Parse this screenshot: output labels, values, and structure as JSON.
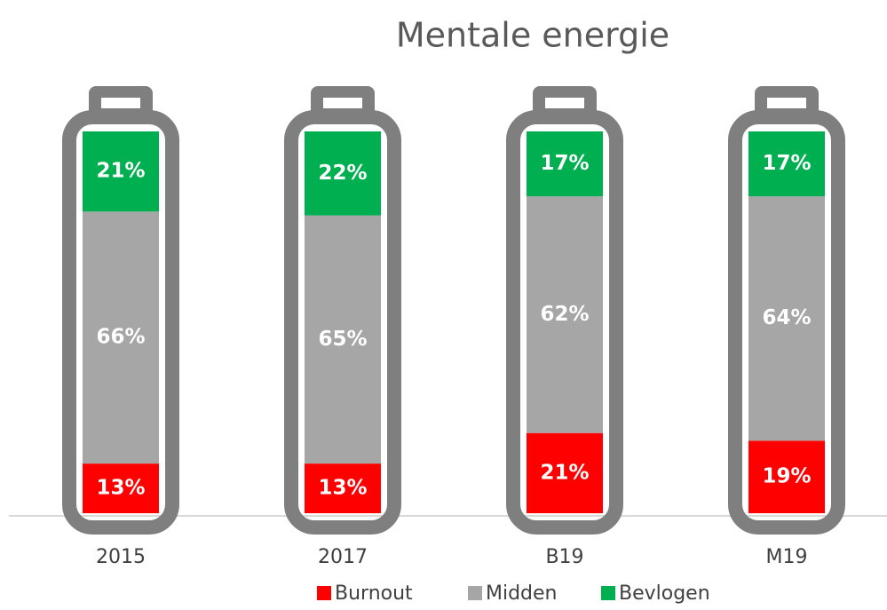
{
  "chart_data": {
    "type": "stacked_bar",
    "title": "Mentale energie",
    "categories": [
      "2015",
      "2017",
      "B19",
      "M19"
    ],
    "series": [
      {
        "name": "Burnout",
        "color": "#ff0000",
        "values": [
          13,
          13,
          21,
          19
        ],
        "value_labels": [
          "13%",
          "13%",
          "21%",
          "19%"
        ]
      },
      {
        "name": "Midden",
        "color": "#a6a6a6",
        "values": [
          66,
          65,
          62,
          64
        ],
        "value_labels": [
          "66%",
          "65%",
          "62%",
          "64%"
        ]
      },
      {
        "name": "Bevlogen",
        "color": "#00b050",
        "values": [
          21,
          22,
          17,
          17
        ],
        "value_labels": [
          "21%",
          "22%",
          "17%",
          "17%"
        ]
      }
    ]
  }
}
